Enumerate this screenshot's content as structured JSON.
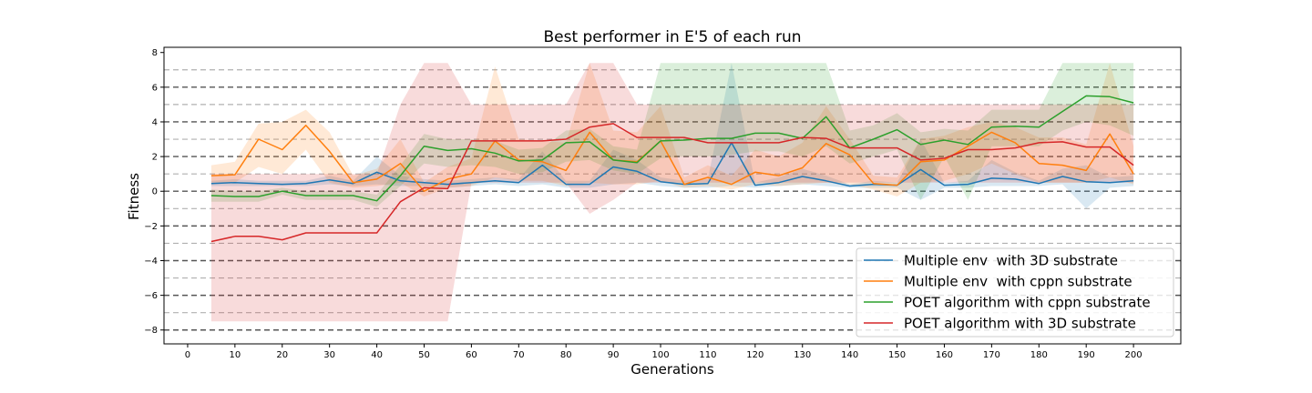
{
  "chart_data": {
    "type": "line",
    "title": "Best performer in E'5 of each run",
    "xlabel": "Generations",
    "ylabel": "Fitness",
    "xlim": [
      -5,
      210
    ],
    "ylim": [
      -8.8,
      8.3
    ],
    "xticks": [
      0,
      10,
      20,
      30,
      40,
      50,
      60,
      70,
      80,
      90,
      100,
      110,
      120,
      130,
      140,
      150,
      160,
      170,
      180,
      190,
      200
    ],
    "yticks": [
      -8,
      -6,
      -4,
      -2,
      0,
      2,
      4,
      6,
      8
    ],
    "yticklabels": [
      "−8",
      "−6",
      "−4",
      "−2",
      "0",
      "2",
      "4",
      "6",
      "8"
    ],
    "dashed_reference_lines": [
      -8,
      -7,
      -6,
      -5,
      -4,
      -3,
      -2,
      -1,
      0,
      1,
      2,
      3,
      4,
      5,
      6,
      7
    ],
    "dashed_major_color": "#555555",
    "dashed_minor_color": "#b0b0b0",
    "legend_position": "lower-right",
    "x": [
      5,
      10,
      15,
      20,
      25,
      30,
      35,
      40,
      45,
      50,
      55,
      60,
      65,
      70,
      75,
      80,
      85,
      90,
      95,
      100,
      105,
      110,
      115,
      120,
      125,
      130,
      135,
      140,
      145,
      150,
      155,
      160,
      165,
      170,
      175,
      180,
      185,
      190,
      195,
      200
    ],
    "series": [
      {
        "name": "Multiple env  with 3D substrate",
        "color": "#1f77b4",
        "values": [
          0.45,
          0.5,
          0.45,
          0.4,
          0.45,
          0.65,
          0.45,
          1.1,
          0.6,
          0.5,
          0.4,
          0.5,
          0.6,
          0.5,
          1.5,
          0.4,
          0.4,
          1.4,
          1.15,
          0.55,
          0.4,
          0.45,
          2.8,
          0.35,
          0.5,
          0.85,
          0.6,
          0.3,
          0.4,
          0.35,
          1.25,
          0.35,
          0.4,
          0.75,
          0.7,
          0.45,
          0.85,
          0.55,
          0.5,
          0.6
        ],
        "lower": [
          0.3,
          0.3,
          0.3,
          0.3,
          0.3,
          0.4,
          0.3,
          0.4,
          0.3,
          0.3,
          0.2,
          0.3,
          0.4,
          0.3,
          0.4,
          0.2,
          0.2,
          0.4,
          0.5,
          0.3,
          0.2,
          0.2,
          0.3,
          0.2,
          0.3,
          0.4,
          0.3,
          0.2,
          0.2,
          0.2,
          -0.5,
          0.2,
          0.2,
          0.3,
          0.3,
          0.3,
          0.4,
          -1.0,
          0.2,
          0.3
        ],
        "upper": [
          0.6,
          0.7,
          0.6,
          0.6,
          0.6,
          0.9,
          0.6,
          2.0,
          0.9,
          0.7,
          0.6,
          0.7,
          0.8,
          0.7,
          2.3,
          0.6,
          0.6,
          2.4,
          1.8,
          0.8,
          0.6,
          0.7,
          7.4,
          0.5,
          0.8,
          1.3,
          0.9,
          0.4,
          0.6,
          0.5,
          3.0,
          0.5,
          0.6,
          1.8,
          1.1,
          0.6,
          1.3,
          1.5,
          0.8,
          0.9
        ]
      },
      {
        "name": "Multiple env  with cppn substrate",
        "color": "#ff7f0e",
        "values": [
          0.9,
          0.95,
          3.0,
          2.4,
          3.8,
          2.3,
          0.5,
          0.7,
          1.6,
          0.0,
          0.7,
          1.0,
          2.9,
          1.8,
          1.7,
          1.2,
          3.4,
          1.8,
          1.7,
          2.9,
          0.4,
          0.8,
          0.4,
          1.1,
          0.9,
          1.35,
          2.75,
          2.1,
          0.45,
          0.35,
          1.7,
          1.8,
          2.6,
          3.4,
          2.8,
          1.6,
          1.5,
          1.2,
          3.3,
          1.0
        ],
        "lower": [
          0.5,
          0.5,
          1.4,
          1.0,
          2.4,
          0.5,
          0.2,
          0.3,
          0.5,
          -0.3,
          0.2,
          0.3,
          0.8,
          0.6,
          0.6,
          0.3,
          0.5,
          0.4,
          0.4,
          0.6,
          0.2,
          0.3,
          0.1,
          0.4,
          0.3,
          0.4,
          0.5,
          0.4,
          0.1,
          -0.3,
          0.5,
          0.6,
          1.0,
          1.6,
          1.0,
          0.5,
          0.5,
          0.5,
          0.8,
          0.4
        ],
        "upper": [
          1.5,
          1.7,
          3.9,
          4.0,
          4.7,
          3.4,
          0.9,
          1.3,
          3.0,
          0.5,
          1.4,
          1.9,
          7.2,
          3.0,
          2.9,
          2.8,
          7.4,
          3.5,
          3.4,
          4.9,
          0.8,
          1.5,
          0.9,
          2.4,
          2.0,
          2.8,
          4.9,
          3.0,
          0.9,
          0.8,
          3.0,
          3.2,
          3.7,
          4.0,
          3.7,
          3.1,
          3.1,
          2.7,
          7.4,
          2.6
        ]
      },
      {
        "name": "POET algorithm with cppn substrate",
        "color": "#2ca02c",
        "values": [
          -0.25,
          -0.3,
          -0.3,
          0.0,
          -0.25,
          -0.25,
          -0.25,
          -0.55,
          0.9,
          2.6,
          2.35,
          2.45,
          2.2,
          1.75,
          1.8,
          2.8,
          2.85,
          1.8,
          1.65,
          2.9,
          2.95,
          3.05,
          3.05,
          3.35,
          3.35,
          3.05,
          4.3,
          2.5,
          3.0,
          3.55,
          2.7,
          2.95,
          2.7,
          3.7,
          3.75,
          3.7,
          4.6,
          5.5,
          5.45,
          5.1
        ],
        "lower": [
          -0.6,
          -0.6,
          -0.6,
          -0.2,
          -0.5,
          -0.5,
          -0.5,
          -0.9,
          0.3,
          1.6,
          1.4,
          1.5,
          1.4,
          1.0,
          1.1,
          1.7,
          1.8,
          1.2,
          1.0,
          1.9,
          2.0,
          2.0,
          2.1,
          2.3,
          2.3,
          2.0,
          2.6,
          1.6,
          2.0,
          2.4,
          -0.5,
          2.0,
          -0.5,
          2.6,
          2.6,
          2.6,
          3.5,
          4.0,
          3.8,
          3.2
        ],
        "upper": [
          0.1,
          0.0,
          0.0,
          0.2,
          0.0,
          0.0,
          0.0,
          -0.2,
          1.5,
          3.3,
          3.0,
          3.0,
          2.9,
          2.4,
          2.5,
          3.5,
          3.6,
          2.6,
          2.4,
          7.4,
          7.4,
          7.4,
          7.4,
          7.4,
          7.4,
          7.4,
          7.4,
          3.5,
          3.8,
          4.5,
          3.4,
          3.6,
          3.5,
          4.7,
          4.7,
          4.7,
          7.4,
          7.4,
          7.4,
          7.4
        ]
      },
      {
        "name": "POET algorithm with 3D substrate",
        "color": "#d62728",
        "values": [
          -2.9,
          -2.6,
          -2.6,
          -2.8,
          -2.4,
          -2.4,
          -2.4,
          -2.4,
          -0.6,
          0.2,
          0.15,
          2.9,
          2.9,
          2.9,
          2.9,
          3.0,
          3.7,
          3.9,
          3.1,
          3.1,
          3.1,
          2.8,
          2.8,
          2.8,
          2.8,
          3.1,
          3.05,
          2.5,
          2.5,
          2.5,
          1.8,
          1.9,
          2.4,
          2.4,
          2.5,
          2.8,
          2.85,
          2.55,
          2.55,
          1.5
        ],
        "lower": [
          -7.5,
          -7.5,
          -7.5,
          -7.5,
          -7.5,
          -7.5,
          -7.5,
          -7.5,
          -7.5,
          -7.5,
          -7.5,
          0.5,
          0.5,
          0.5,
          0.5,
          0.5,
          -1.3,
          -0.5,
          0.5,
          0.5,
          0.5,
          0.5,
          0.5,
          0.5,
          0.5,
          0.5,
          0.5,
          0.5,
          0.5,
          0.5,
          0.5,
          0.5,
          0.5,
          0.5,
          0.5,
          0.5,
          0.5,
          0.5,
          0.5,
          0.5
        ],
        "upper": [
          1.0,
          1.0,
          1.0,
          1.0,
          1.0,
          1.0,
          1.0,
          1.0,
          5.0,
          7.4,
          7.4,
          5.0,
          5.0,
          5.0,
          5.0,
          5.0,
          7.4,
          7.4,
          5.0,
          5.0,
          5.0,
          5.0,
          5.0,
          5.0,
          5.0,
          5.0,
          5.0,
          5.0,
          5.0,
          5.0,
          5.0,
          5.0,
          5.0,
          5.0,
          5.0,
          5.0,
          5.0,
          5.0,
          5.0,
          5.0
        ]
      }
    ]
  }
}
